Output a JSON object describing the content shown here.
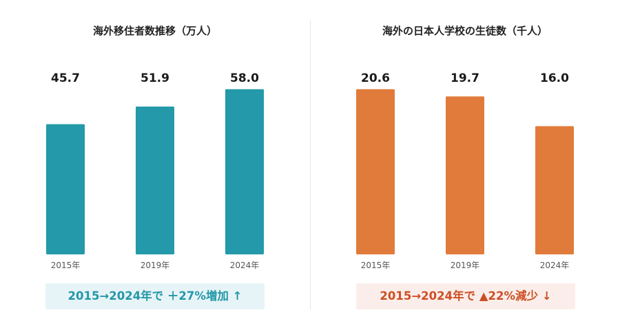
{
  "colors": {
    "left_bar": "#2399a9",
    "right_bar": "#e17b3b",
    "left_note_bg": "#e7f4f7",
    "left_note_text": "#2497a8",
    "right_note_bg": "#fbeeea",
    "right_note_text": "#cc4f24"
  },
  "left": {
    "title": "海外移住者数推移（万人）",
    "note": "2015→2024年で ＋27%増加 ↑"
  },
  "right": {
    "title": "海外の日本人学校の生徒数（千人）",
    "note": "2015→2024年で ▲22%減少 ↓"
  },
  "chart_data": [
    {
      "type": "bar",
      "title": "海外移住者数推移（万人）",
      "categories": [
        "2015年",
        "2019年",
        "2024年"
      ],
      "values": [
        45.7,
        51.9,
        58.0
      ],
      "value_labels": [
        "45.7",
        "51.9",
        "58.0"
      ],
      "ylim": [
        0,
        71.2
      ],
      "grid": false,
      "legend": "none"
    },
    {
      "type": "bar",
      "title": "海外の日本人学校の生徒数（千人）",
      "categories": [
        "2015年",
        "2019年",
        "2024年"
      ],
      "values": [
        20.6,
        19.7,
        16.0
      ],
      "value_labels": [
        "20.6",
        "19.7",
        "16.0"
      ],
      "ylim": [
        0,
        25.3
      ],
      "grid": false,
      "legend": "none"
    }
  ]
}
